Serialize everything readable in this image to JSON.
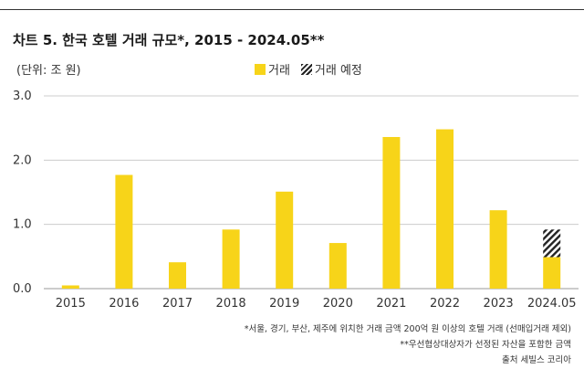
{
  "title": "차트 5. 한국 호텔 거래 규모*, 2015 - 2024.05**",
  "unit_label": "(단위: 조 원)",
  "legend": [
    {
      "label": "거래",
      "pattern": "solid"
    },
    {
      "label": "거래 예정",
      "pattern": "hatched"
    }
  ],
  "colors": {
    "bar": "#f7d419",
    "hatch": "#222222",
    "axis": "#999999",
    "grid": "#cccccc"
  },
  "chart_data": {
    "type": "bar",
    "stacked": true,
    "categories": [
      "2015",
      "2016",
      "2017",
      "2018",
      "2019",
      "2020",
      "2021",
      "2022",
      "2023",
      "2024.05"
    ],
    "series": [
      {
        "name": "거래",
        "values": [
          0.05,
          1.77,
          0.41,
          0.92,
          1.51,
          0.71,
          2.36,
          2.48,
          1.22,
          0.49
        ]
      },
      {
        "name": "거래 예정",
        "values": [
          0,
          0,
          0,
          0,
          0,
          0,
          0,
          0,
          0,
          0.43
        ]
      }
    ],
    "y_ticks": [
      "0.0",
      "1.0",
      "2.0",
      "3.0"
    ],
    "ylim": [
      0,
      3
    ],
    "grid": "horizontal",
    "legend_position": "top-center"
  },
  "notes": [
    "*서울, 경기, 부산, 제주에 위치한 거래 금액 200억 원 이상의 호텔 거래 (선매입거래 제외)",
    "**우선협상대상자가 선정된 자산을 포함한 금액",
    "출처 세빌스 코리아"
  ]
}
